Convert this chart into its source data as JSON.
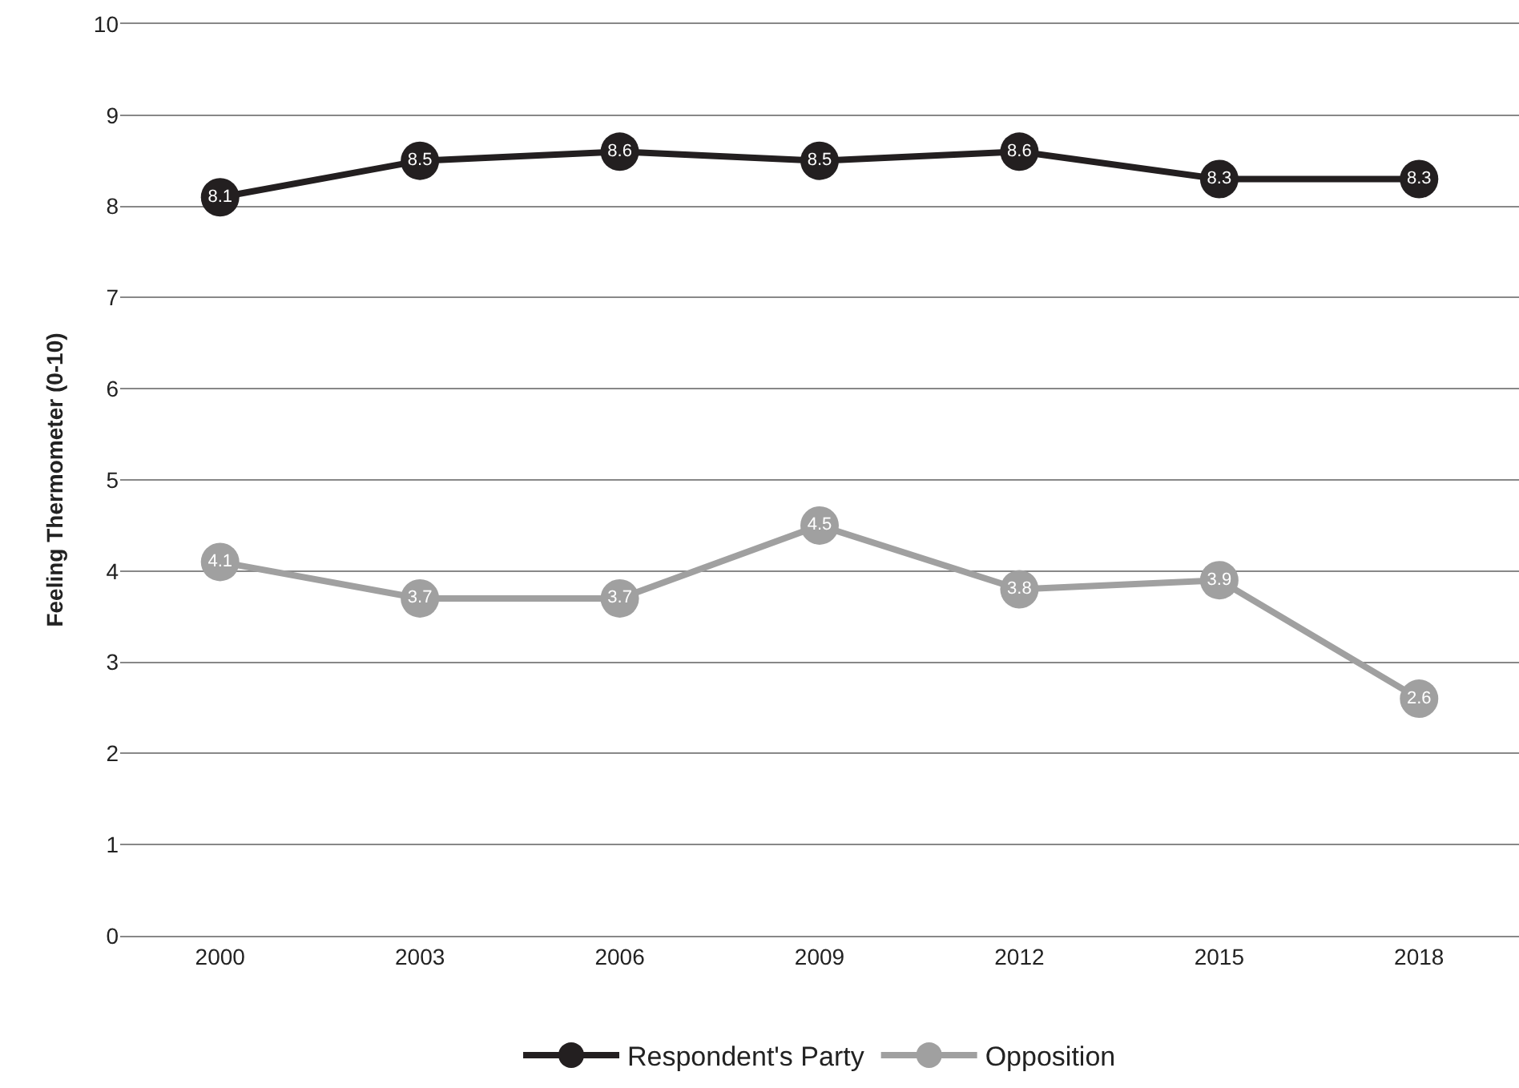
{
  "chart_data": {
    "type": "line",
    "ylabel": "Feeling Thermometer (0-10)",
    "categories": [
      "2000",
      "2003",
      "2006",
      "2009",
      "2012",
      "2015",
      "2018"
    ],
    "series": [
      {
        "name": "Respondent's Party",
        "color": "#231f20",
        "values": [
          8.1,
          8.5,
          8.6,
          8.5,
          8.6,
          8.3,
          8.3
        ]
      },
      {
        "name": "Opposition",
        "color": "#a0a0a0",
        "values": [
          4.1,
          3.7,
          3.7,
          4.5,
          3.8,
          3.9,
          2.6
        ]
      }
    ],
    "ylim": [
      0,
      10
    ],
    "yticks": [
      0,
      1,
      2,
      3,
      4,
      5,
      6,
      7,
      8,
      9,
      10
    ],
    "grid": "y",
    "legend": "bottom",
    "marker": "circle",
    "line_style": "solid",
    "data_labels": true
  }
}
